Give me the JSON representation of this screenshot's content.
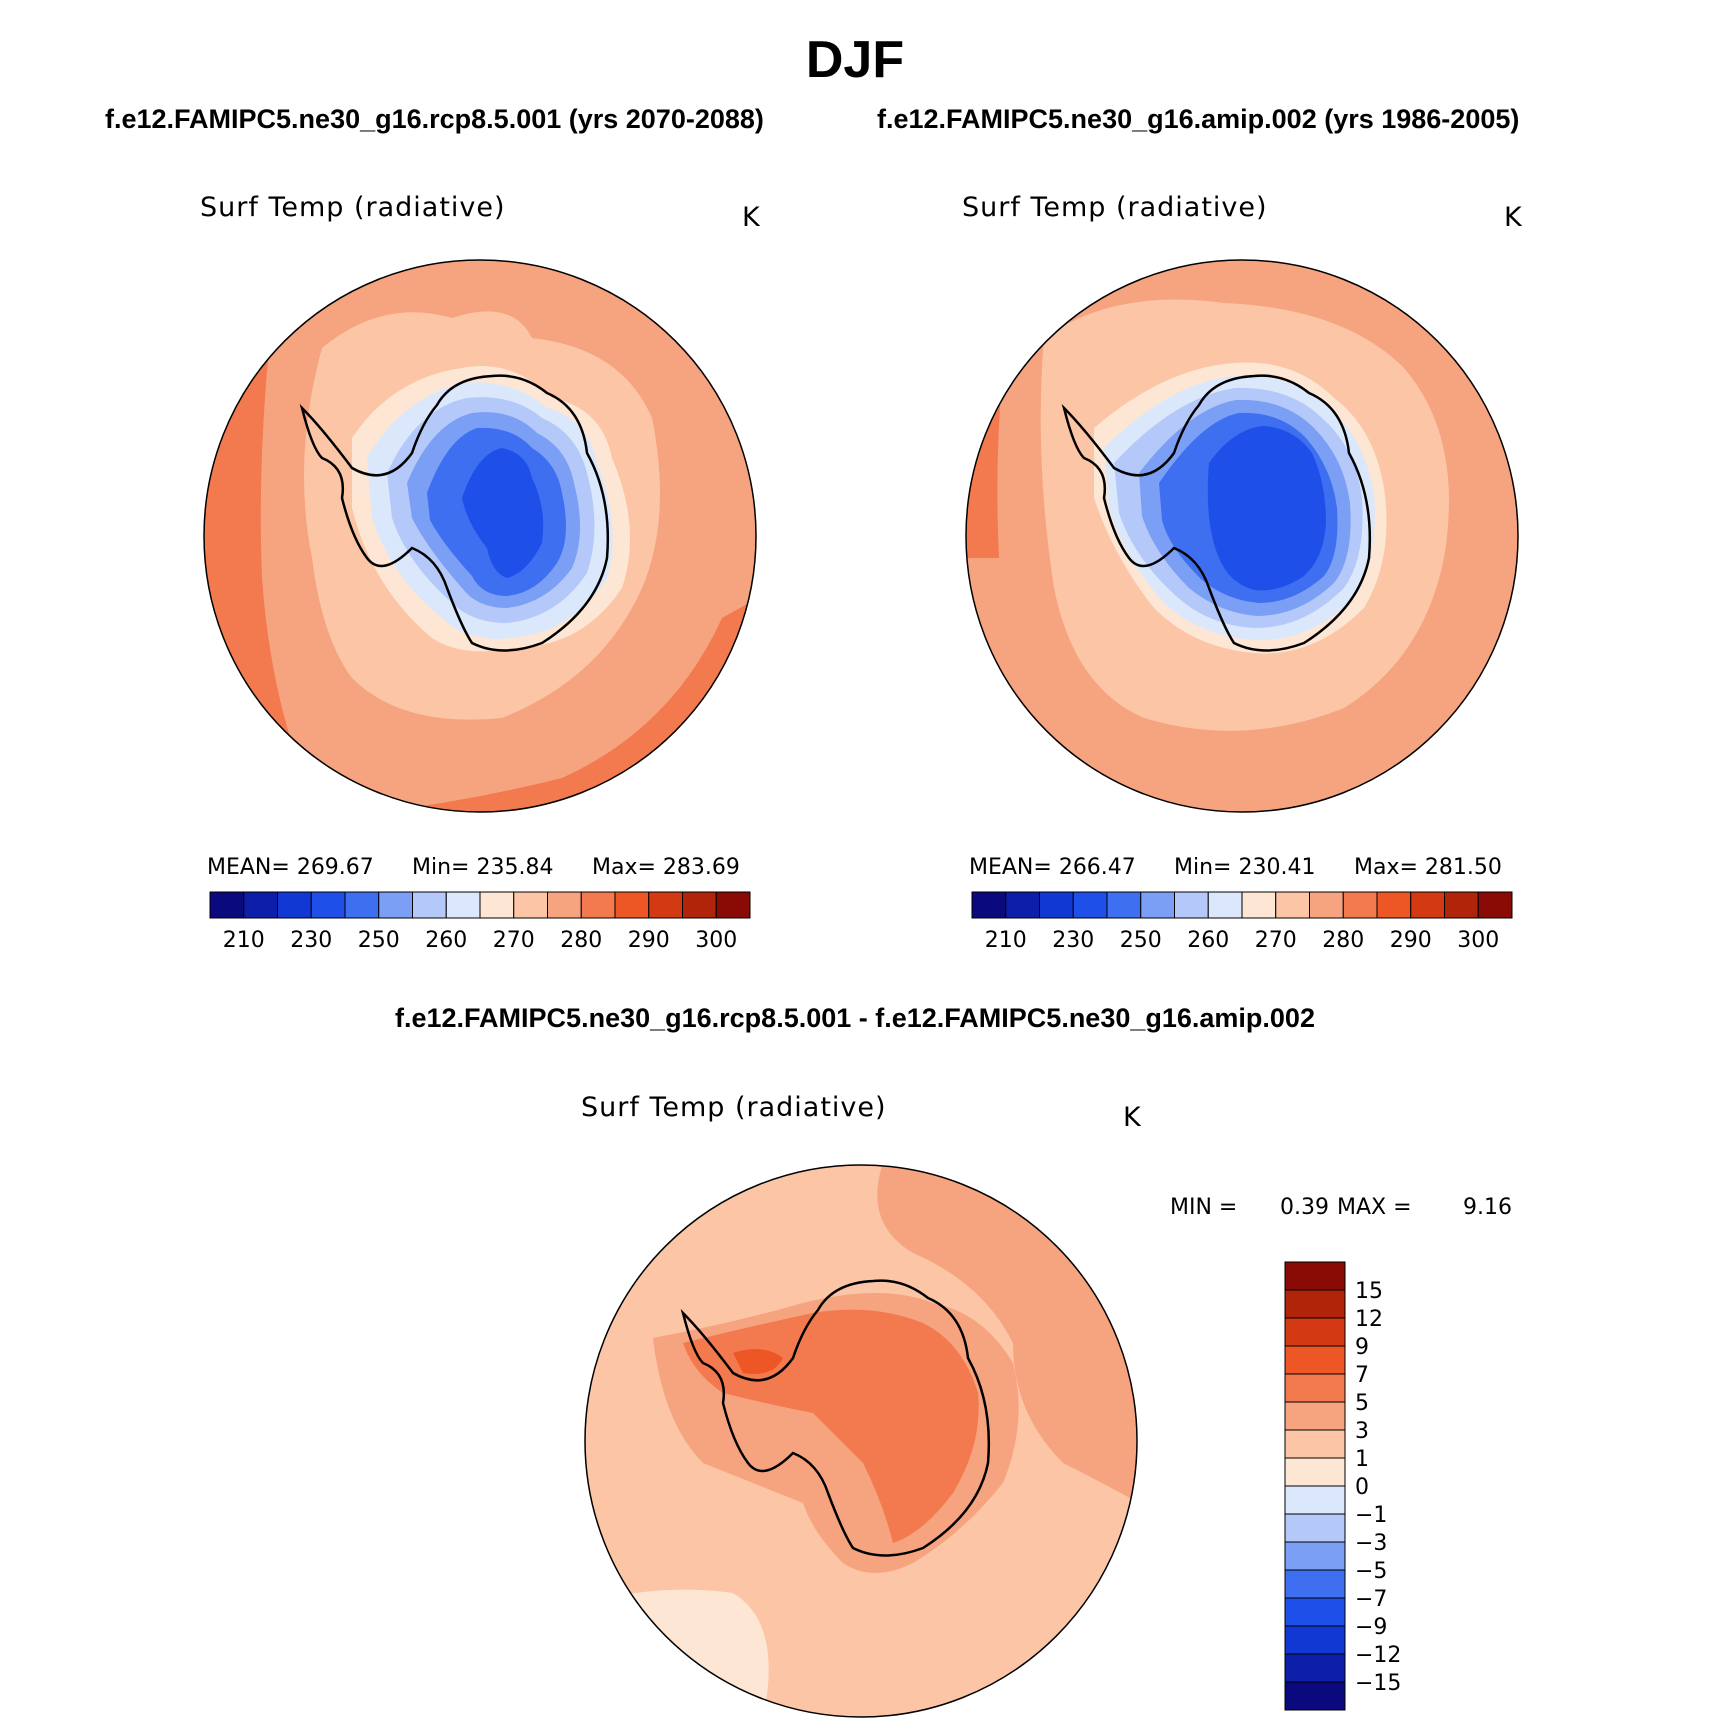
{
  "header": {
    "title": "DJF",
    "case1": "f.e12.FAMIPC5.ne30_g16.rcp8.5.001 (yrs 2070-2088)",
    "case2": "f.e12.FAMIPC5.ne30_g16.amip.002 (yrs 1986-2005)",
    "diff_title": "f.e12.FAMIPC5.ne30_g16.rcp8.5.001 - f.e12.FAMIPC5.ne30_g16.amip.002"
  },
  "panels": {
    "p1": {
      "variable": "Surf Temp (radiative)",
      "units": "K",
      "mean": "MEAN= 269.67",
      "min": "Min= 235.84",
      "max": "Max= 283.69"
    },
    "p2": {
      "variable": "Surf Temp (radiative)",
      "units": "K",
      "mean": "MEAN= 266.47",
      "min": "Min= 230.41",
      "max": "Max= 281.50"
    },
    "p3": {
      "variable": "Surf Temp (radiative)",
      "units": "K",
      "min_label": "MIN =",
      "min_value": "0.39",
      "max_label": "MAX =",
      "max_value": "9.16"
    }
  },
  "colorbars": {
    "abs": {
      "colors": [
        "#0a0a7e",
        "#0d1fa8",
        "#1238d3",
        "#1f4fe9",
        "#3e6ff0",
        "#7b9ff5",
        "#b4c9fa",
        "#dbe8fc",
        "#fde6d3",
        "#fbc5a6",
        "#f6a37f",
        "#f27a4e",
        "#ed5725",
        "#d33a13",
        "#b0240a",
        "#8a0a05"
      ],
      "labels": [
        "210",
        "230",
        "250",
        "260",
        "270",
        "280",
        "290",
        "300"
      ]
    },
    "diff": {
      "colors": [
        "#0a0a7e",
        "#0d1fa8",
        "#1238d3",
        "#1f4fe9",
        "#3e6ff0",
        "#7b9ff5",
        "#b4c9fa",
        "#dbe8fc",
        "#fde6d3",
        "#fbc5a6",
        "#f6a37f",
        "#f27a4e",
        "#ed5725",
        "#d33a13",
        "#b0240a",
        "#8a0a05"
      ],
      "labels": [
        "−15",
        "−12",
        "−9",
        "−7",
        "−5",
        "−3",
        "−1",
        "0",
        "1",
        "3",
        "5",
        "7",
        "9",
        "12",
        "15"
      ]
    }
  },
  "legend": {
    "abs_levels_K": [
      210,
      230,
      250,
      260,
      270,
      280,
      290,
      300
    ],
    "diff_levels_K": [
      -15,
      -12,
      -9,
      -7,
      -5,
      -3,
      -1,
      0,
      1,
      3,
      5,
      7,
      9,
      12,
      15
    ]
  }
}
